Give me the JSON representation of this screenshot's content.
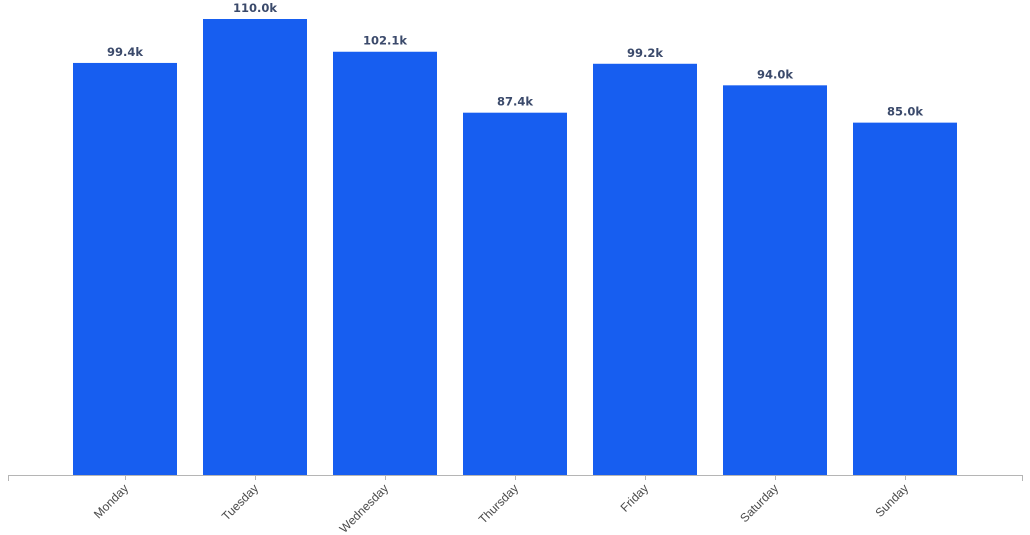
{
  "colors": {
    "bar": "#175ef0",
    "axis": "#b5b5b5",
    "label": "#3b4a6b",
    "tick_text": "#4a4a4a"
  },
  "chart_data": {
    "type": "bar",
    "categories": [
      "Monday",
      "Tuesday",
      "Wednesday",
      "Thursday",
      "Friday",
      "Saturday",
      "Sunday"
    ],
    "values": [
      99.4,
      110.0,
      102.1,
      87.4,
      99.2,
      94.0,
      85.0
    ],
    "value_labels": [
      "99.4k",
      "110.0k",
      "102.1k",
      "87.4k",
      "99.2k",
      "94.0k",
      "85.0k"
    ],
    "value_unit": "thousands",
    "ylim": [
      0,
      110.0
    ],
    "grid": false,
    "legend": "none",
    "x_tick_rotation": "-45deg"
  }
}
